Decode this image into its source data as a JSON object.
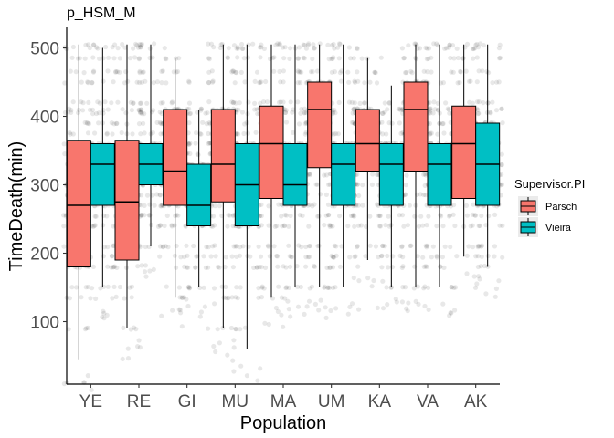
{
  "chart_data": {
    "type": "boxplot",
    "title": "p_HSM_M",
    "xlabel": "Population",
    "ylabel": "TimeDeath(min)",
    "ylim": [
      15,
      525
    ],
    "yticks": [
      100,
      200,
      300,
      400,
      500
    ],
    "categories": [
      "YE",
      "RE",
      "GI",
      "MU",
      "MA",
      "UM",
      "KA",
      "VA",
      "AK"
    ],
    "legend": {
      "title": "Supervisor.PI",
      "position": "right"
    },
    "grid": false,
    "series": [
      {
        "name": "Parsch",
        "color": "#F8766D",
        "boxes": [
          {
            "min": 45,
            "q1": 180,
            "median": 270,
            "q3": 365,
            "max": 505
          },
          {
            "min": 90,
            "q1": 190,
            "median": 275,
            "q3": 365,
            "max": 505
          },
          {
            "min": 135,
            "q1": 270,
            "median": 320,
            "q3": 410,
            "max": 485
          },
          {
            "min": 90,
            "q1": 275,
            "median": 330,
            "q3": 410,
            "max": 505
          },
          {
            "min": 135,
            "q1": 280,
            "median": 360,
            "q3": 415,
            "max": 505
          },
          {
            "min": 150,
            "q1": 325,
            "median": 410,
            "q3": 450,
            "max": 505
          },
          {
            "min": 190,
            "q1": 320,
            "median": 360,
            "q3": 410,
            "max": 485
          },
          {
            "min": 150,
            "q1": 320,
            "median": 410,
            "q3": 450,
            "max": 505
          },
          {
            "min": 195,
            "q1": 280,
            "median": 360,
            "q3": 415,
            "max": 505
          }
        ]
      },
      {
        "name": "Vieira",
        "color": "#00BFC4",
        "boxes": [
          {
            "min": 150,
            "q1": 270,
            "median": 330,
            "q3": 360,
            "max": 500
          },
          {
            "min": 210,
            "q1": 300,
            "median": 330,
            "q3": 360,
            "max": 505
          },
          {
            "min": 150,
            "q1": 240,
            "median": 270,
            "q3": 330,
            "max": 410
          },
          {
            "min": 60,
            "q1": 240,
            "median": 300,
            "q3": 360,
            "max": 505
          },
          {
            "min": 150,
            "q1": 270,
            "median": 300,
            "q3": 360,
            "max": 505
          },
          {
            "min": 150,
            "q1": 270,
            "median": 330,
            "q3": 360,
            "max": 505
          },
          {
            "min": 150,
            "q1": 270,
            "median": 330,
            "q3": 360,
            "max": 445
          },
          {
            "min": 150,
            "q1": 270,
            "median": 330,
            "q3": 360,
            "max": 505
          },
          {
            "min": 180,
            "q1": 270,
            "median": 330,
            "q3": 390,
            "max": 505
          }
        ]
      }
    ],
    "jitter_points": {
      "shown": true,
      "color": "#000000",
      "common_values": [
        90,
        135,
        150,
        180,
        195,
        210,
        240,
        255,
        270,
        285,
        300,
        315,
        330,
        345,
        360,
        375,
        390,
        405,
        410,
        420,
        450,
        465,
        485,
        500,
        505
      ]
    }
  }
}
